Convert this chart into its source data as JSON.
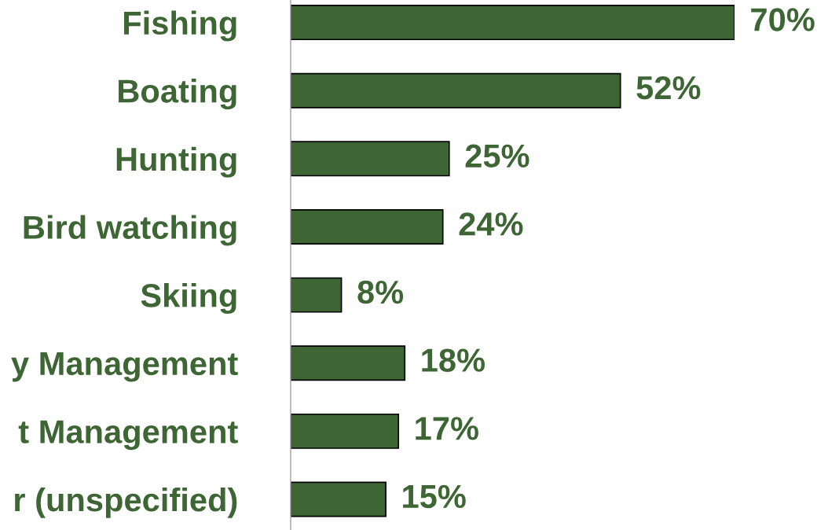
{
  "chart_data": {
    "type": "bar",
    "orientation": "horizontal",
    "categories": [
      "Fishing",
      "Boating",
      "Hunting",
      "Bird watching",
      "Skiing",
      "y Management",
      "t Management",
      "r (unspecified)"
    ],
    "values": [
      70,
      52,
      25,
      24,
      8,
      18,
      17,
      15
    ],
    "value_labels": [
      "70%",
      "52%",
      "25%",
      "24%",
      "8%",
      "18%",
      "17%",
      "15%"
    ],
    "color": "#3d6634",
    "grid": false,
    "legend": false
  }
}
